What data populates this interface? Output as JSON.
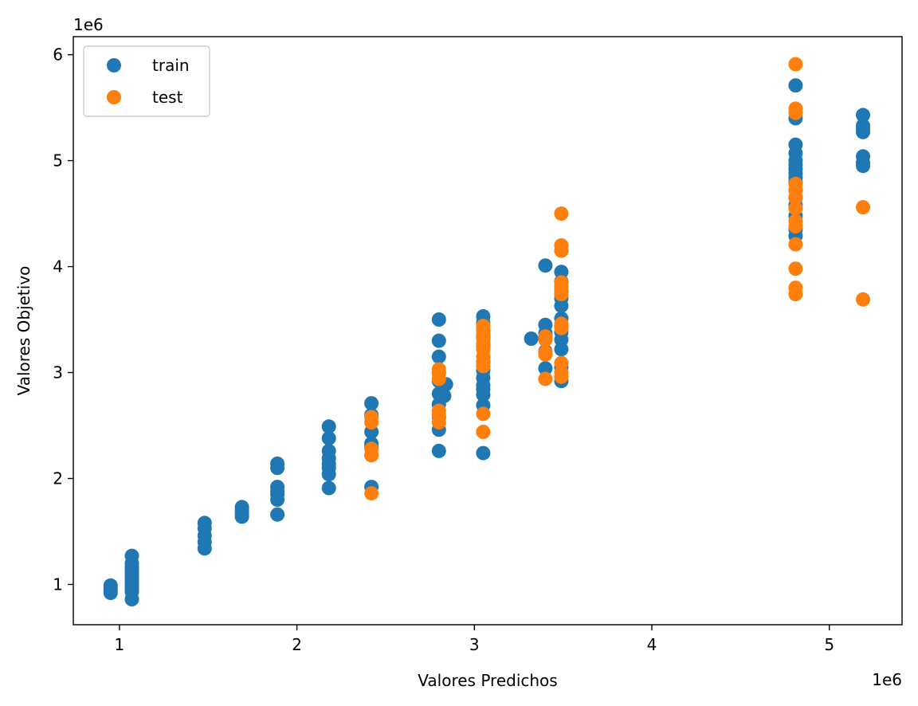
{
  "chart_data": {
    "type": "scatter",
    "title": "",
    "xlabel": "Valores Predichos",
    "ylabel": "Valores Objetivo",
    "x_offset_label": "1e6",
    "y_offset_label": "1e6",
    "xlim": [
      0.74,
      5.41
    ],
    "ylim": [
      0.62,
      6.17
    ],
    "x_ticks": [
      1,
      2,
      3,
      4,
      5
    ],
    "y_ticks": [
      1,
      2,
      3,
      4,
      5,
      6
    ],
    "x_tick_labels": [
      "1",
      "2",
      "3",
      "4",
      "5"
    ],
    "y_tick_labels": [
      "1",
      "2",
      "3",
      "4",
      "5",
      "6"
    ],
    "grid": false,
    "legend_position": "upper-left",
    "series": [
      {
        "name": "train",
        "color": "#1f77b4",
        "points": [
          [
            0.95,
            0.92
          ],
          [
            0.95,
            0.95
          ],
          [
            0.95,
            0.97
          ],
          [
            0.95,
            0.99
          ],
          [
            1.07,
            0.86
          ],
          [
            1.07,
            0.93
          ],
          [
            1.07,
            0.96
          ],
          [
            1.07,
            0.99
          ],
          [
            1.07,
            1.02
          ],
          [
            1.07,
            1.05
          ],
          [
            1.07,
            1.08
          ],
          [
            1.07,
            1.11
          ],
          [
            1.07,
            1.14
          ],
          [
            1.07,
            1.17
          ],
          [
            1.07,
            1.2
          ],
          [
            1.07,
            1.27
          ],
          [
            1.48,
            1.34
          ],
          [
            1.48,
            1.4
          ],
          [
            1.48,
            1.46
          ],
          [
            1.48,
            1.53
          ],
          [
            1.48,
            1.58
          ],
          [
            1.69,
            1.64
          ],
          [
            1.69,
            1.67
          ],
          [
            1.69,
            1.7
          ],
          [
            1.69,
            1.73
          ],
          [
            1.89,
            1.66
          ],
          [
            1.89,
            1.8
          ],
          [
            1.89,
            1.85
          ],
          [
            1.89,
            1.88
          ],
          [
            1.89,
            1.92
          ],
          [
            1.89,
            2.1
          ],
          [
            1.89,
            2.14
          ],
          [
            2.18,
            1.91
          ],
          [
            2.18,
            2.04
          ],
          [
            2.18,
            2.1
          ],
          [
            2.18,
            2.14
          ],
          [
            2.18,
            2.19
          ],
          [
            2.18,
            2.26
          ],
          [
            2.18,
            2.38
          ],
          [
            2.18,
            2.49
          ],
          [
            2.42,
            1.92
          ],
          [
            2.42,
            2.22
          ],
          [
            2.42,
            2.3
          ],
          [
            2.42,
            2.33
          ],
          [
            2.42,
            2.44
          ],
          [
            2.42,
            2.6
          ],
          [
            2.42,
            2.71
          ],
          [
            2.8,
            2.26
          ],
          [
            2.8,
            2.46
          ],
          [
            2.8,
            2.58
          ],
          [
            2.8,
            2.7
          ],
          [
            2.8,
            2.8
          ],
          [
            2.8,
            2.92
          ],
          [
            2.8,
            3.0
          ],
          [
            2.8,
            3.15
          ],
          [
            2.8,
            3.3
          ],
          [
            2.8,
            3.5
          ],
          [
            2.83,
            2.78
          ],
          [
            2.84,
            2.89
          ],
          [
            3.05,
            2.24
          ],
          [
            3.05,
            2.69
          ],
          [
            3.05,
            2.79
          ],
          [
            3.05,
            2.84
          ],
          [
            3.05,
            2.88
          ],
          [
            3.05,
            2.95
          ],
          [
            3.05,
            3.02
          ],
          [
            3.05,
            3.1
          ],
          [
            3.05,
            3.25
          ],
          [
            3.05,
            3.33
          ],
          [
            3.05,
            3.4
          ],
          [
            3.05,
            3.47
          ],
          [
            3.05,
            3.53
          ],
          [
            3.32,
            3.32
          ],
          [
            3.4,
            3.04
          ],
          [
            3.4,
            3.2
          ],
          [
            3.4,
            3.37
          ],
          [
            3.4,
            3.45
          ],
          [
            3.4,
            4.01
          ],
          [
            3.49,
            2.92
          ],
          [
            3.49,
            3.05
          ],
          [
            3.49,
            3.22
          ],
          [
            3.49,
            3.31
          ],
          [
            3.49,
            3.38
          ],
          [
            3.49,
            3.44
          ],
          [
            3.49,
            3.51
          ],
          [
            3.49,
            3.63
          ],
          [
            3.49,
            3.7
          ],
          [
            3.49,
            3.77
          ],
          [
            3.49,
            3.86
          ],
          [
            3.49,
            3.95
          ],
          [
            4.81,
            4.29
          ],
          [
            4.81,
            4.35
          ],
          [
            4.81,
            4.48
          ],
          [
            4.81,
            4.58
          ],
          [
            4.81,
            4.65
          ],
          [
            4.81,
            4.72
          ],
          [
            4.81,
            4.8
          ],
          [
            4.81,
            4.84
          ],
          [
            4.81,
            4.88
          ],
          [
            4.81,
            4.92
          ],
          [
            4.81,
            4.96
          ],
          [
            4.81,
            5.0
          ],
          [
            4.81,
            5.07
          ],
          [
            4.81,
            5.15
          ],
          [
            4.81,
            5.4
          ],
          [
            4.81,
            5.71
          ],
          [
            5.19,
            4.95
          ],
          [
            5.19,
            4.98
          ],
          [
            5.19,
            5.04
          ],
          [
            5.19,
            5.27
          ],
          [
            5.19,
            5.3
          ],
          [
            5.19,
            5.33
          ],
          [
            5.19,
            5.43
          ]
        ]
      },
      {
        "name": "test",
        "color": "#ff7f0e",
        "points": [
          [
            2.42,
            1.86
          ],
          [
            2.42,
            2.22
          ],
          [
            2.42,
            2.28
          ],
          [
            2.42,
            2.53
          ],
          [
            2.42,
            2.58
          ],
          [
            2.8,
            2.53
          ],
          [
            2.8,
            2.6
          ],
          [
            2.8,
            2.64
          ],
          [
            2.8,
            2.94
          ],
          [
            2.8,
            3.0
          ],
          [
            2.8,
            3.03
          ],
          [
            3.05,
            2.44
          ],
          [
            3.05,
            2.61
          ],
          [
            3.05,
            3.06
          ],
          [
            3.05,
            3.1
          ],
          [
            3.05,
            3.15
          ],
          [
            3.05,
            3.22
          ],
          [
            3.05,
            3.27
          ],
          [
            3.05,
            3.32
          ],
          [
            3.05,
            3.36
          ],
          [
            3.05,
            3.4
          ],
          [
            3.05,
            3.44
          ],
          [
            3.4,
            2.94
          ],
          [
            3.4,
            3.17
          ],
          [
            3.4,
            3.19
          ],
          [
            3.4,
            3.31
          ],
          [
            3.4,
            3.34
          ],
          [
            3.49,
            2.96
          ],
          [
            3.49,
            3.0
          ],
          [
            3.49,
            3.09
          ],
          [
            3.49,
            3.42
          ],
          [
            3.49,
            3.46
          ],
          [
            3.49,
            3.74
          ],
          [
            3.49,
            3.77
          ],
          [
            3.49,
            3.81
          ],
          [
            3.49,
            3.85
          ],
          [
            3.49,
            4.15
          ],
          [
            3.49,
            4.2
          ],
          [
            3.49,
            4.5
          ],
          [
            4.81,
            3.74
          ],
          [
            4.81,
            3.8
          ],
          [
            4.81,
            3.98
          ],
          [
            4.81,
            4.21
          ],
          [
            4.81,
            4.38
          ],
          [
            4.81,
            4.43
          ],
          [
            4.81,
            4.55
          ],
          [
            4.81,
            4.65
          ],
          [
            4.81,
            4.72
          ],
          [
            4.81,
            4.78
          ],
          [
            4.81,
            5.45
          ],
          [
            4.81,
            5.49
          ],
          [
            4.81,
            5.91
          ],
          [
            5.19,
            3.69
          ],
          [
            5.19,
            4.56
          ]
        ]
      }
    ]
  }
}
